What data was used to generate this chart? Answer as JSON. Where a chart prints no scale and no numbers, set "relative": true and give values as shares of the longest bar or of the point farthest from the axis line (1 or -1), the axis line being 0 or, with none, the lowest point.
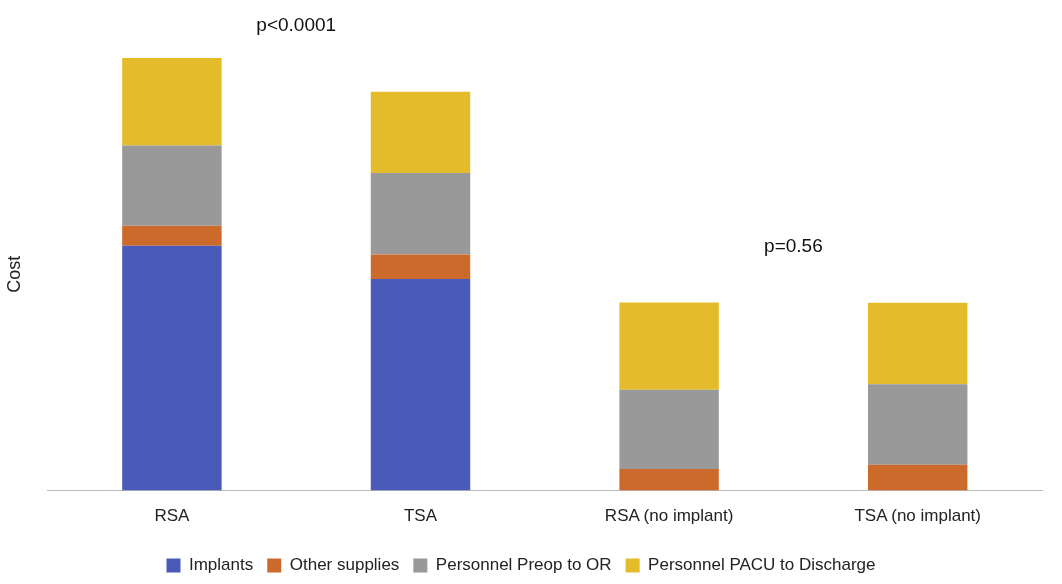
{
  "chart_data": {
    "type": "bar",
    "stacked": true,
    "relative": true,
    "ylabel": "Cost",
    "legend": "bottom",
    "grid": false,
    "categories": [
      "RSA",
      "TSA",
      "RSA (no implant)",
      "TSA (no implant)"
    ],
    "series": [
      {
        "name": "Implants",
        "color": "#4a5ab8",
        "values": [
          0.566,
          0.489,
          0,
          0
        ]
      },
      {
        "name": "Other supplies",
        "color": "#cc6a2c",
        "values": [
          0.046,
          0.057,
          0.05,
          0.06
        ]
      },
      {
        "name": "Personnel Preop to OR",
        "color": "#999999",
        "values": [
          0.186,
          0.188,
          0.183,
          0.186
        ]
      },
      {
        "name": "Personnel PACU to Discharge",
        "color": "#e4bb2a",
        "values": [
          0.202,
          0.188,
          0.202,
          0.188
        ]
      }
    ],
    "annotations": [
      "p<0.0001",
      "p=0.56"
    ]
  }
}
